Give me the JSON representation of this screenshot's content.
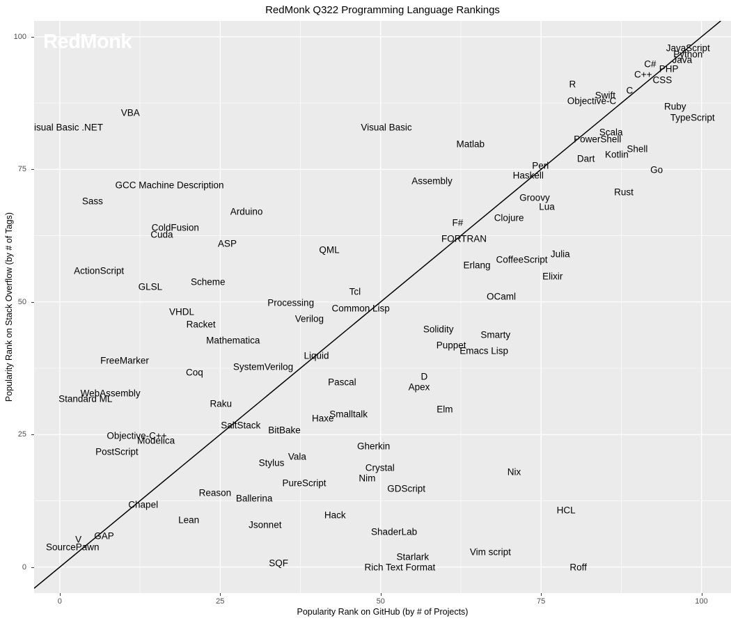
{
  "chart_data": {
    "type": "scatter",
    "title": "RedMonk Q322 Programming Language Rankings",
    "xlabel": "Popularity Rank on GitHub (by # of Projects)",
    "ylabel": "Popularity Rank on Stack Overflow (by # of Tags)",
    "watermark": "RedMonk",
    "xlim": [
      -4.0,
      104.6
    ],
    "ylim": [
      -4.9,
      103.0
    ],
    "x_ticks": [
      0,
      25,
      50,
      75,
      100
    ],
    "y_ticks": [
      0,
      25,
      50,
      75,
      100
    ],
    "minor_ticks": [
      12.5,
      37.5,
      62.5,
      87.5
    ],
    "grid": true,
    "legend": "none",
    "reference_line": {
      "type": "identity",
      "description": "diagonal y = x line"
    },
    "colors": {
      "panel_bg": "#EBEBEB",
      "grid": "#FFFFFF",
      "label_text": "#000000",
      "tick_text": "#4D4D4D",
      "axis_title_text": "#000000",
      "title_text": "#000000",
      "reference_line": "#000000",
      "watermark": "#FFFFFF"
    },
    "points": [
      {
        "label": "JavaScript",
        "x": 97.9,
        "y": 97.9
      },
      {
        "label": "Python",
        "x": 97.9,
        "y": 96.7
      },
      {
        "label": "Java",
        "x": 97.0,
        "y": 95.7
      },
      {
        "label": "PHP",
        "x": 94.9,
        "y": 93.9
      },
      {
        "label": "C#",
        "x": 92.0,
        "y": 94.9
      },
      {
        "label": "CSS",
        "x": 93.9,
        "y": 91.8
      },
      {
        "label": "C++",
        "x": 90.9,
        "y": 92.9
      },
      {
        "label": "TypeScript",
        "x": 98.6,
        "y": 84.8
      },
      {
        "label": "Ruby",
        "x": 95.9,
        "y": 86.9
      },
      {
        "label": "C",
        "x": 88.8,
        "y": 89.9
      },
      {
        "label": "Swift",
        "x": 85.0,
        "y": 88.9
      },
      {
        "label": "R",
        "x": 79.9,
        "y": 91.1
      },
      {
        "label": "Objective-C",
        "x": 82.9,
        "y": 87.9
      },
      {
        "label": "Shell",
        "x": 90.0,
        "y": 78.9
      },
      {
        "label": "Scala",
        "x": 85.9,
        "y": 82.0
      },
      {
        "label": "Go",
        "x": 93.0,
        "y": 74.9
      },
      {
        "label": "PowerShell",
        "x": 83.8,
        "y": 80.7
      },
      {
        "label": "Kotlin",
        "x": 86.8,
        "y": 77.8
      },
      {
        "label": "Rust",
        "x": 87.9,
        "y": 70.7
      },
      {
        "label": "Dart",
        "x": 82.0,
        "y": 77.0
      },
      {
        "label": "Perl",
        "x": 74.9,
        "y": 75.7
      },
      {
        "label": "Haskell",
        "x": 73.0,
        "y": 73.9
      },
      {
        "label": "Lua",
        "x": 75.9,
        "y": 67.9
      },
      {
        "label": "Groovy",
        "x": 74.0,
        "y": 69.7
      },
      {
        "label": "Clojure",
        "x": 70.0,
        "y": 65.8
      },
      {
        "label": "Julia",
        "x": 78.0,
        "y": 59.0
      },
      {
        "label": "CoffeeScript",
        "x": 72.0,
        "y": 58.0
      },
      {
        "label": "Elixir",
        "x": 76.8,
        "y": 54.8
      },
      {
        "label": "Visual Basic",
        "x": 50.9,
        "y": 82.9
      },
      {
        "label": "Matlab",
        "x": 64.0,
        "y": 79.8
      },
      {
        "label": "Assembly",
        "x": 58.0,
        "y": 72.8
      },
      {
        "label": "F#",
        "x": 62.0,
        "y": 64.9
      },
      {
        "label": "FORTRAN",
        "x": 63.0,
        "y": 61.9
      },
      {
        "label": "Erlang",
        "x": 65.0,
        "y": 56.9
      },
      {
        "label": "OCaml",
        "x": 68.8,
        "y": 51.0
      },
      {
        "label": "Smarty",
        "x": 67.9,
        "y": 43.8
      },
      {
        "label": "Solidity",
        "x": 59.0,
        "y": 44.9
      },
      {
        "label": "Puppet",
        "x": 61.0,
        "y": 41.8
      },
      {
        "label": "Emacs Lisp",
        "x": 66.1,
        "y": 40.8
      },
      {
        "label": "D",
        "x": 56.8,
        "y": 35.9
      },
      {
        "label": "Apex",
        "x": 56.0,
        "y": 34.0
      },
      {
        "label": "Elm",
        "x": 60.0,
        "y": 29.8
      },
      {
        "label": "Nix",
        "x": 70.8,
        "y": 17.9
      },
      {
        "label": "HCL",
        "x": 78.9,
        "y": 10.7
      },
      {
        "label": "Vim script",
        "x": 67.1,
        "y": 2.8
      },
      {
        "label": "Roff",
        "x": 80.8,
        "y": -0.1
      },
      {
        "label": "VBA",
        "x": 11.0,
        "y": 85.7
      },
      {
        "label": "Visual Basic .NET",
        "x": 0.9,
        "y": 82.9
      },
      {
        "label": "GCC Machine Description",
        "x": 17.1,
        "y": 72.0
      },
      {
        "label": "Sass",
        "x": 5.1,
        "y": 69.0
      },
      {
        "label": "Arduino",
        "x": 29.1,
        "y": 67.0
      },
      {
        "label": "ColdFusion",
        "x": 18.0,
        "y": 64.0
      },
      {
        "label": "Cuda",
        "x": 15.9,
        "y": 62.7
      },
      {
        "label": "ASP",
        "x": 26.1,
        "y": 61.0
      },
      {
        "label": "QML",
        "x": 42.0,
        "y": 59.8
      },
      {
        "label": "ActionScript",
        "x": 6.1,
        "y": 55.9
      },
      {
        "label": "Scheme",
        "x": 23.1,
        "y": 53.8
      },
      {
        "label": "GLSL",
        "x": 14.1,
        "y": 52.8
      },
      {
        "label": "Tcl",
        "x": 46.0,
        "y": 51.9
      },
      {
        "label": "Processing",
        "x": 36.0,
        "y": 49.8
      },
      {
        "label": "Common Lisp",
        "x": 46.9,
        "y": 48.8
      },
      {
        "label": "Verilog",
        "x": 38.9,
        "y": 46.8
      },
      {
        "label": "VHDL",
        "x": 19.0,
        "y": 48.1
      },
      {
        "label": "Racket",
        "x": 22.0,
        "y": 45.8
      },
      {
        "label": "Mathematica",
        "x": 27.0,
        "y": 42.8
      },
      {
        "label": "FreeMarker",
        "x": 10.1,
        "y": 38.9
      },
      {
        "label": "SystemVerilog",
        "x": 31.7,
        "y": 37.7
      },
      {
        "label": "Liquid",
        "x": 40.0,
        "y": 39.8
      },
      {
        "label": "Coq",
        "x": 21.0,
        "y": 36.7
      },
      {
        "label": "Pascal",
        "x": 44.0,
        "y": 34.9
      },
      {
        "label": "WebAssembly",
        "x": 7.9,
        "y": 32.8
      },
      {
        "label": "Standard ML",
        "x": 4.0,
        "y": 31.7
      },
      {
        "label": "Raku",
        "x": 25.1,
        "y": 30.8
      },
      {
        "label": "Smalltalk",
        "x": 45.0,
        "y": 28.8
      },
      {
        "label": "Haxe",
        "x": 41.0,
        "y": 28.0
      },
      {
        "label": "SaltStack",
        "x": 28.2,
        "y": 26.8
      },
      {
        "label": "BitBake",
        "x": 35.0,
        "y": 25.8
      },
      {
        "label": "Objective-C++",
        "x": 12.0,
        "y": 24.8
      },
      {
        "label": "Modelica",
        "x": 15.0,
        "y": 23.9
      },
      {
        "label": "PostScript",
        "x": 8.9,
        "y": 21.7
      },
      {
        "label": "Gherkin",
        "x": 48.9,
        "y": 22.8
      },
      {
        "label": "Vala",
        "x": 37.0,
        "y": 20.8
      },
      {
        "label": "Stylus",
        "x": 33.0,
        "y": 19.7
      },
      {
        "label": "Crystal",
        "x": 49.9,
        "y": 18.7
      },
      {
        "label": "Nim",
        "x": 47.9,
        "y": 16.8
      },
      {
        "label": "PureScript",
        "x": 38.1,
        "y": 15.8
      },
      {
        "label": "GDScript",
        "x": 54.0,
        "y": 14.8
      },
      {
        "label": "Reason",
        "x": 24.2,
        "y": 14.0
      },
      {
        "label": "Ballerina",
        "x": 30.3,
        "y": 12.9
      },
      {
        "label": "Chapel",
        "x": 13.0,
        "y": 11.8
      },
      {
        "label": "Lean",
        "x": 20.1,
        "y": 8.9
      },
      {
        "label": "Jsonnet",
        "x": 32.0,
        "y": 7.9
      },
      {
        "label": "Hack",
        "x": 42.9,
        "y": 9.8
      },
      {
        "label": "ShaderLab",
        "x": 52.1,
        "y": 6.7
      },
      {
        "label": "GAP",
        "x": 6.9,
        "y": 5.9
      },
      {
        "label": "V",
        "x": 2.9,
        "y": 5.2
      },
      {
        "label": "SourcePawn",
        "x": 2.0,
        "y": 3.7
      },
      {
        "label": "SQF",
        "x": 34.1,
        "y": 0.8
      },
      {
        "label": "Starlark",
        "x": 55.0,
        "y": 1.9
      },
      {
        "label": "Rich Text Format",
        "x": 53.0,
        "y": 0.0
      }
    ]
  }
}
